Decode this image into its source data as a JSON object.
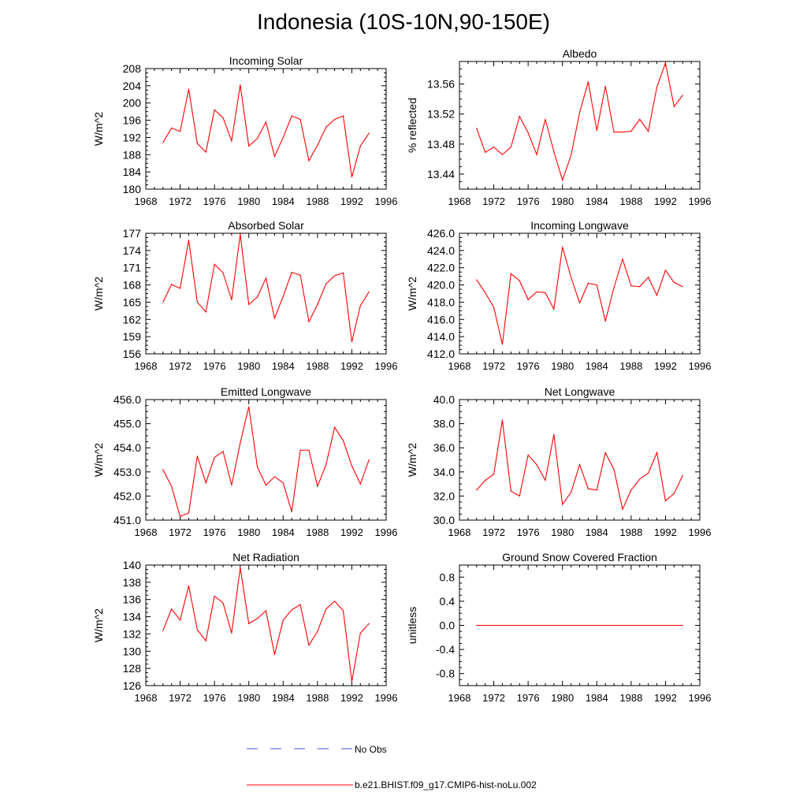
{
  "figure": {
    "title": "Indonesia (10S-10N,90-150E)",
    "x_ticks": [
      "1968",
      "1972",
      "1976",
      "1980",
      "1984",
      "1988",
      "1992",
      "1996"
    ],
    "legend": [
      {
        "label": "No Obs",
        "color": "#4a4ad0",
        "dashed": true
      },
      {
        "label": "b.e21.BHIST.f09_g17.CMIP6-hist-noLu.002",
        "color": "#ff0000",
        "dashed": false
      }
    ]
  },
  "chart_data": [
    {
      "type": "line",
      "title": "Incoming Solar",
      "ylabel": "W/m^2",
      "xlim": [
        1968,
        1996
      ],
      "ylim": [
        180,
        208
      ],
      "yticks": [
        "180",
        "184",
        "188",
        "192",
        "196",
        "200",
        "204",
        "208"
      ],
      "grid": false,
      "series": [
        {
          "color": "#ff0000",
          "x": [
            1970,
            1971,
            1972,
            1973,
            1974,
            1975,
            1976,
            1977,
            1978,
            1979,
            1980,
            1981,
            1982,
            1983,
            1984,
            1985,
            1986,
            1987,
            1988,
            1989,
            1990,
            1991,
            1992,
            1993,
            1994
          ],
          "y": [
            190.8,
            194.2,
            193.4,
            203.2,
            190.6,
            188.6,
            198.4,
            196.6,
            191.2,
            204.2,
            190.0,
            191.8,
            195.6,
            187.6,
            192.0,
            197.0,
            196.2,
            186.6,
            190.2,
            194.4,
            196.2,
            197.0,
            182.8,
            190.0,
            193.0
          ]
        }
      ]
    },
    {
      "type": "line",
      "title": "Albedo",
      "ylabel": "% reflected",
      "xlim": [
        1968,
        1996
      ],
      "ylim": [
        13.42,
        13.59
      ],
      "yticks": [
        "13.44",
        "13.48",
        "13.52",
        "13.56"
      ],
      "grid": false,
      "series": [
        {
          "color": "#ff0000",
          "x": [
            1970,
            1971,
            1972,
            1973,
            1974,
            1975,
            1976,
            1977,
            1978,
            1979,
            1980,
            1981,
            1982,
            1983,
            1984,
            1985,
            1986,
            1987,
            1988,
            1989,
            1990,
            1991,
            1992,
            1993,
            1994
          ],
          "y": [
            13.501,
            13.469,
            13.476,
            13.466,
            13.476,
            13.517,
            13.495,
            13.466,
            13.513,
            13.47,
            13.432,
            13.465,
            13.522,
            13.563,
            13.498,
            13.557,
            13.496,
            13.496,
            13.497,
            13.513,
            13.497,
            13.556,
            13.588,
            13.53,
            13.545
          ]
        }
      ]
    },
    {
      "type": "line",
      "title": "Absorbed Solar",
      "ylabel": "W/m^2",
      "xlim": [
        1968,
        1996
      ],
      "ylim": [
        156,
        177
      ],
      "yticks": [
        "156",
        "159",
        "162",
        "165",
        "168",
        "171",
        "174",
        "177"
      ],
      "grid": false,
      "series": [
        {
          "color": "#ff0000",
          "x": [
            1970,
            1971,
            1972,
            1973,
            1974,
            1975,
            1976,
            1977,
            1978,
            1979,
            1980,
            1981,
            1982,
            1983,
            1984,
            1985,
            1986,
            1987,
            1988,
            1989,
            1990,
            1991,
            1992,
            1993,
            1994
          ],
          "y": [
            165.0,
            168.1,
            167.4,
            175.8,
            165.0,
            163.3,
            171.6,
            170.1,
            165.4,
            176.8,
            164.6,
            165.9,
            169.2,
            162.2,
            166.0,
            170.2,
            169.7,
            161.6,
            164.6,
            168.2,
            169.6,
            170.1,
            158.1,
            164.4,
            166.8
          ]
        }
      ]
    },
    {
      "type": "line",
      "title": "Incoming Longwave",
      "ylabel": "W/m^2",
      "xlim": [
        1968,
        1996
      ],
      "ylim": [
        412.0,
        426.0
      ],
      "yticks": [
        "412.0",
        "414.0",
        "416.0",
        "418.0",
        "420.0",
        "422.0",
        "424.0",
        "426.0"
      ],
      "grid": false,
      "series": [
        {
          "color": "#ff0000",
          "x": [
            1970,
            1971,
            1972,
            1973,
            1974,
            1975,
            1976,
            1977,
            1978,
            1979,
            1980,
            1981,
            1982,
            1983,
            1984,
            1985,
            1986,
            1987,
            1988,
            1989,
            1990,
            1991,
            1992,
            1993,
            1994
          ],
          "y": [
            420.6,
            419.1,
            417.4,
            413.1,
            421.3,
            420.5,
            418.3,
            419.2,
            419.1,
            417.2,
            424.4,
            420.9,
            417.9,
            420.2,
            420.0,
            415.8,
            419.7,
            423.0,
            419.9,
            419.8,
            420.9,
            418.8,
            421.7,
            420.3,
            419.8
          ]
        }
      ]
    },
    {
      "type": "line",
      "title": "Emitted Longwave",
      "ylabel": "W/m^2",
      "xlim": [
        1968,
        1996
      ],
      "ylim": [
        451.0,
        456.0
      ],
      "yticks": [
        "451.0",
        "452.0",
        "453.0",
        "454.0",
        "455.0",
        "456.0"
      ],
      "grid": false,
      "series": [
        {
          "color": "#ff0000",
          "x": [
            1970,
            1971,
            1972,
            1973,
            1974,
            1975,
            1976,
            1977,
            1978,
            1979,
            1980,
            1981,
            1982,
            1983,
            1984,
            1985,
            1986,
            1987,
            1988,
            1989,
            1990,
            1991,
            1992,
            1993,
            1994
          ],
          "y": [
            453.1,
            452.4,
            451.15,
            451.3,
            453.65,
            452.55,
            453.6,
            453.85,
            452.45,
            454.2,
            455.7,
            453.2,
            452.45,
            452.8,
            452.55,
            451.35,
            453.9,
            453.9,
            452.4,
            453.3,
            454.85,
            454.3,
            453.25,
            452.5,
            453.5
          ]
        }
      ]
    },
    {
      "type": "line",
      "title": "Net Longwave",
      "ylabel": "W/m^2",
      "xlim": [
        1968,
        1996
      ],
      "ylim": [
        30.0,
        40.0
      ],
      "yticks": [
        "30.0",
        "32.0",
        "34.0",
        "36.0",
        "38.0",
        "40.0"
      ],
      "grid": false,
      "series": [
        {
          "color": "#ff0000",
          "x": [
            1970,
            1971,
            1972,
            1973,
            1974,
            1975,
            1976,
            1977,
            1978,
            1979,
            1980,
            1981,
            1982,
            1983,
            1984,
            1985,
            1986,
            1987,
            1988,
            1989,
            1990,
            1991,
            1992,
            1993,
            1994
          ],
          "y": [
            32.5,
            33.3,
            33.8,
            38.3,
            32.4,
            32.0,
            35.4,
            34.6,
            33.3,
            37.1,
            31.3,
            32.3,
            34.6,
            32.6,
            32.5,
            35.6,
            34.2,
            30.9,
            32.5,
            33.4,
            33.9,
            35.6,
            31.6,
            32.2,
            33.7
          ]
        }
      ]
    },
    {
      "type": "line",
      "title": "Net Radiation",
      "ylabel": "W/m^2",
      "xlim": [
        1968,
        1996
      ],
      "ylim": [
        126,
        140
      ],
      "yticks": [
        "126",
        "128",
        "130",
        "132",
        "134",
        "136",
        "138",
        "140"
      ],
      "grid": false,
      "series": [
        {
          "color": "#ff0000",
          "x": [
            1970,
            1971,
            1972,
            1973,
            1974,
            1975,
            1976,
            1977,
            1978,
            1979,
            1980,
            1981,
            1982,
            1983,
            1984,
            1985,
            1986,
            1987,
            1988,
            1989,
            1990,
            1991,
            1992,
            1993,
            1994
          ],
          "y": [
            132.4,
            134.9,
            133.6,
            137.6,
            132.5,
            131.2,
            136.4,
            135.6,
            132.1,
            139.7,
            133.2,
            133.8,
            134.7,
            129.6,
            133.6,
            134.8,
            135.4,
            130.7,
            132.3,
            134.9,
            135.8,
            134.7,
            126.5,
            132.1,
            133.2
          ]
        }
      ]
    },
    {
      "type": "line",
      "title": "Ground Snow Covered Fraction",
      "ylabel": "unitless",
      "xlim": [
        1968,
        1996
      ],
      "ylim": [
        -1.0,
        1.0
      ],
      "yticks": [
        "-0.8",
        "-0.4",
        "0.0",
        "0.4",
        "0.8"
      ],
      "grid": false,
      "series": [
        {
          "color": "#ff0000",
          "x": [
            1970,
            1994
          ],
          "y": [
            0.0,
            0.0
          ]
        }
      ]
    }
  ]
}
